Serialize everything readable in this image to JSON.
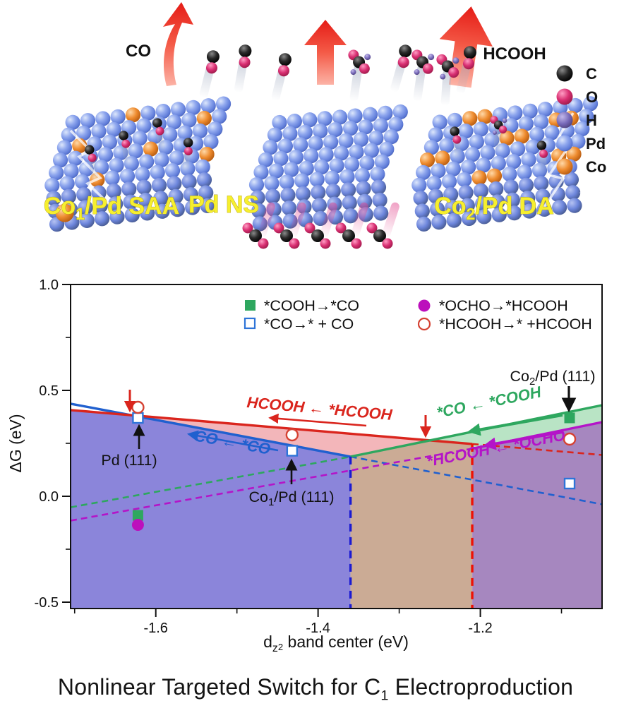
{
  "illustration": {
    "co_arrow_label": "CO",
    "hcooh_arrow_label": "HCOOH",
    "slab_labels": [
      {
        "pre": "Co",
        "sub": "1",
        "post": "/Pd SAA"
      },
      {
        "pre": "Pd NS",
        "sub": "",
        "post": ""
      },
      {
        "pre": "Co",
        "sub": "2",
        "post": "/Pd DA"
      }
    ],
    "label_color": "#f6ef2f",
    "atom_legend": [
      {
        "symbol": "C",
        "color": "#1b1b1b"
      },
      {
        "symbol": "O",
        "color": "#d6336f"
      },
      {
        "symbol": "H",
        "color": "#7668b8"
      },
      {
        "symbol": "Pd",
        "color": "#7d96e8"
      },
      {
        "symbol": "Co",
        "color": "#e6802a"
      }
    ]
  },
  "chart_data": {
    "type": "scatter",
    "title": "",
    "xlabel": {
      "pre": "d",
      "sub": "z",
      "sup": "2",
      "post": " band center (eV)"
    },
    "ylabel": "ΔG (eV)",
    "xlim": [
      -1.705,
      -1.05
    ],
    "ylim": [
      -0.53,
      1.0
    ],
    "x_ticks": [
      {
        "v": -1.6,
        "label": "-1.6"
      },
      {
        "v": -1.4,
        "label": "-1.4"
      },
      {
        "v": -1.2,
        "label": "-1.2"
      }
    ],
    "x_minor_ticks": [
      -1.7,
      -1.5,
      -1.3,
      -1.1
    ],
    "y_ticks": [
      {
        "v": 1.0,
        "label": "1.0"
      },
      {
        "v": 0.5,
        "label": "0.5"
      },
      {
        "v": 0.0,
        "label": "0.0"
      },
      {
        "v": -0.5,
        "label": "-0.5"
      }
    ],
    "y_minor_ticks": [
      0.75,
      0.25,
      -0.25
    ],
    "legend": [
      {
        "label": "*COOH→*CO",
        "marker": "filled-square",
        "color": "#2ea75f"
      },
      {
        "label": "*CO→* + CO",
        "marker": "open-square",
        "color": "#2e74d8"
      },
      {
        "label": "*OCHO→*HCOOH",
        "marker": "filled-circle",
        "color": "#bc10bc"
      },
      {
        "label": "*HCOOH→* +HCOOH",
        "marker": "open-circle",
        "color": "#d54233"
      }
    ],
    "lines": [
      {
        "series": "*CO→* + CO",
        "color": "#2060cf",
        "solid": [
          [
            -1.705,
            0.437
          ],
          [
            -1.36,
            0.187
          ]
        ],
        "dashed": [
          [
            -1.36,
            0.187
          ],
          [
            -1.05,
            -0.038
          ]
        ]
      },
      {
        "series": "*HCOOH→* +HCOOH",
        "color": "#da251d",
        "solid": [
          [
            -1.705,
            0.407
          ],
          [
            -1.21,
            0.247
          ]
        ],
        "dashed": [
          [
            -1.21,
            0.247
          ],
          [
            -1.05,
            0.195
          ]
        ]
      },
      {
        "series": "*COOH→*CO",
        "color": "#2ea75f",
        "solid": [
          [
            -1.36,
            0.187
          ],
          [
            -1.05,
            0.43
          ]
        ],
        "dashed": [
          [
            -1.705,
            -0.052
          ],
          [
            -1.36,
            0.187
          ]
        ]
      },
      {
        "series": "*OCHO→*HCOOH",
        "color": "#b414c8",
        "solid": [
          [
            -1.21,
            0.225
          ],
          [
            -1.05,
            0.35
          ]
        ],
        "dashed": [
          [
            -1.705,
            -0.115
          ],
          [
            -1.21,
            0.225
          ]
        ]
      }
    ],
    "vlines": [
      {
        "x": -1.36,
        "y_top": 0.187,
        "color": "#1a1ad2"
      },
      {
        "x": -1.21,
        "y_top": 0.247,
        "color": "#ed1205"
      }
    ],
    "region_colors": {
      "violet": "#8b85da",
      "pink": "#f3b6ba",
      "tan": "#cbab95",
      "lightgreen": "#b9e4c5",
      "mauve": "#a687bf"
    },
    "points": [
      {
        "material": "Pd (111)",
        "x": -1.622,
        "values": [
          {
            "series": "*CO→* + CO",
            "y": 0.37
          },
          {
            "series": "*HCOOH→* +HCOOH",
            "y": 0.42
          },
          {
            "series": "*COOH→*CO",
            "y": -0.09
          },
          {
            "series": "*OCHO→*HCOOH",
            "y": -0.135
          }
        ]
      },
      {
        "material": "Co1/Pd (111)",
        "x": -1.432,
        "values": [
          {
            "series": "*CO→* + CO",
            "y": 0.215
          },
          {
            "series": "*HCOOH→* +HCOOH",
            "y": 0.29
          }
        ]
      },
      {
        "material": "Co2/Pd (111)",
        "x": -1.09,
        "values": [
          {
            "series": "*CO→* + CO",
            "y": 0.06
          },
          {
            "series": "*COOH→*CO",
            "y": 0.37
          },
          {
            "series": "*HCOOH→* +HCOOH",
            "y": 0.27
          }
        ]
      }
    ],
    "region_labels": [
      {
        "text": "CO ← *CO",
        "color": "#2060cf"
      },
      {
        "text": "HCOOH ← *HCOOH",
        "color": "#da251d"
      },
      {
        "text": "*CO ← *COOH",
        "color": "#2ea75f"
      },
      {
        "text": "*HCOOH ← *OCHO",
        "color": "#b414c8"
      }
    ],
    "annotations": [
      {
        "pre": "Pd (111)",
        "sub": "",
        "post": ""
      },
      {
        "pre": "Co",
        "sub": "1",
        "post": "/Pd (111)"
      },
      {
        "pre": "Co",
        "sub": "2",
        "post": "/Pd (111)"
      }
    ]
  },
  "caption": {
    "pre": "Nonlinear Targeted Switch for C",
    "sub": "1",
    "post": " Electroproduction"
  }
}
